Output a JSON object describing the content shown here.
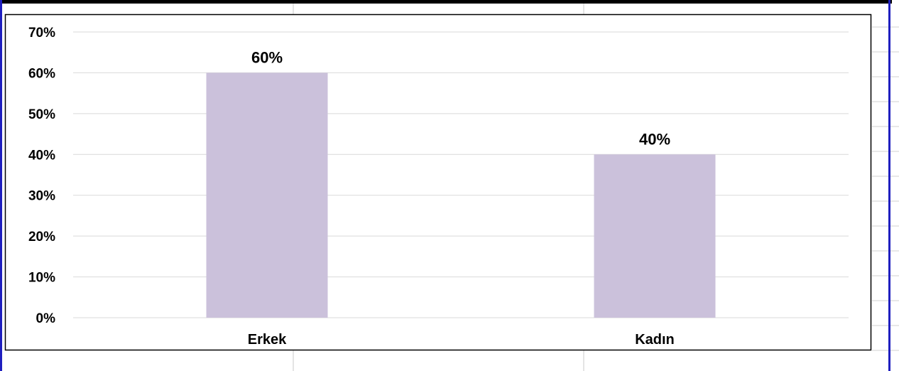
{
  "chart_data": {
    "type": "bar",
    "categories": [
      "Erkek",
      "Kadın"
    ],
    "values": [
      60,
      40
    ],
    "data_labels": [
      "60%",
      "40%"
    ],
    "yticks": [
      "0%",
      "10%",
      "20%",
      "30%",
      "40%",
      "50%",
      "60%",
      "70%"
    ],
    "ylim": [
      0,
      70
    ],
    "title": "",
    "xlabel": "",
    "ylabel": "",
    "grid": true,
    "legend": "none",
    "bar_color": "#CBC1DB",
    "grid_color": "#D9D9D9"
  },
  "sheet": {
    "gridline_color": "#C0C0C0",
    "selection_border_color": "#1F1FBF"
  }
}
